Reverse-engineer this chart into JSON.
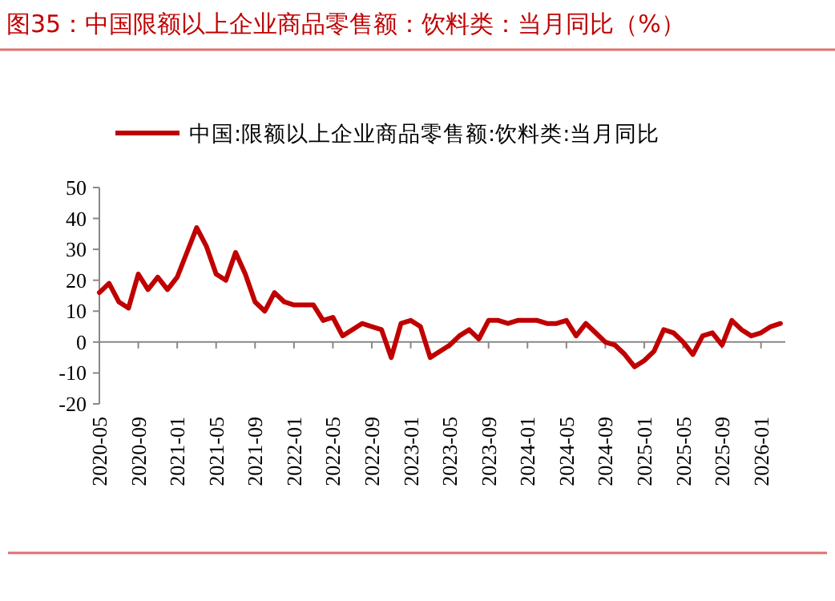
{
  "chart_data": {
    "type": "line",
    "title": "图35：中国限额以上企业商品零售额：饮料类：当月同比（%）",
    "categories": [
      "2020-05",
      null,
      null,
      null,
      "2020-09",
      null,
      null,
      null,
      "2021-01",
      null,
      null,
      null,
      "2021-05",
      null,
      null,
      null,
      "2021-09",
      null,
      null,
      null,
      "2022-01",
      null,
      null,
      null,
      "2022-05",
      null,
      null,
      null,
      "2022-09",
      null,
      null,
      null,
      "2023-01",
      null,
      null,
      null,
      "2023-05",
      null,
      null,
      null,
      "2023-09",
      null,
      null,
      null,
      "2024-01",
      null,
      null,
      null,
      "2024-05",
      null,
      null,
      null,
      "2024-09",
      null,
      null,
      null,
      "2025-01",
      null,
      null,
      null,
      "2025-05",
      null,
      null,
      null,
      "2025-09",
      null,
      null,
      null,
      "2026-01",
      null,
      null
    ],
    "series": [
      {
        "name": "中国:限额以上企业商品零售额:饮料类:当月同比",
        "color": "#c00000",
        "values": [
          16,
          19,
          13,
          11,
          22,
          17,
          21,
          17,
          21,
          29,
          37,
          31,
          22,
          20,
          29,
          22,
          13,
          10,
          16,
          13,
          12,
          12,
          12,
          7,
          8,
          2,
          4,
          6,
          5,
          4,
          -5,
          6,
          7,
          5,
          -5,
          -3,
          -1,
          2,
          4,
          1,
          7,
          7,
          6,
          7,
          7,
          7,
          6,
          6,
          7,
          2,
          6,
          3,
          0,
          -1,
          -4,
          -8,
          -6,
          -3,
          4,
          3,
          0,
          -4,
          2,
          3,
          -1,
          7,
          4,
          2,
          3,
          5,
          6
        ]
      }
    ],
    "ylim": [
      -20,
      50
    ],
    "yticks": [
      -20,
      -10,
      0,
      10,
      20,
      30,
      40,
      50
    ],
    "legend": "top",
    "marker": "none",
    "line_style": "solid"
  }
}
